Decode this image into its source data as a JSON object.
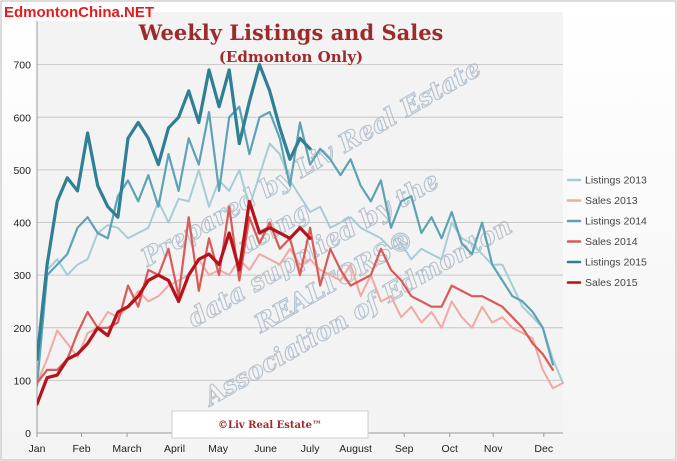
{
  "brand": "EdmontonChina.NET",
  "credit": "©Liv Real Estate™",
  "watermark": [
    "Prepared by Liv Real Estate",
    "using",
    "data supplied by the",
    "REALTORS®",
    "Association of Edmonton"
  ],
  "colors": {
    "listings_2013": "#a6cdd6",
    "sales_2013": "#f0a9a5",
    "listings_2014": "#5ea3b5",
    "sales_2014": "#d85b58",
    "listings_2015": "#2f7f95",
    "sales_2015": "#b5121b",
    "title": "#9e2a2b",
    "brand": "#e51c1c",
    "grid": "#c8c8c8",
    "plot_bg": "#f3f3f3"
  },
  "chart_data": {
    "type": "line",
    "title": "Weekly Listings and Sales",
    "subtitle": "(Edmonton Only)",
    "xlabel": "",
    "ylabel": "",
    "ylim": [
      0,
      800
    ],
    "yticks": [
      0,
      100,
      200,
      300,
      400,
      500,
      600,
      700
    ],
    "xlim": [
      1,
      53
    ],
    "x_ticks": [
      {
        "label": "Jan",
        "week": 1
      },
      {
        "label": "Feb",
        "week": 5.4
      },
      {
        "label": "March",
        "week": 9.9
      },
      {
        "label": "April",
        "week": 14.6
      },
      {
        "label": "May",
        "week": 18.9
      },
      {
        "label": "June",
        "week": 23.6
      },
      {
        "label": "July",
        "week": 28
      },
      {
        "label": "August",
        "week": 32.5
      },
      {
        "label": "Sep",
        "week": 37.3
      },
      {
        "label": "Oct",
        "week": 41.8
      },
      {
        "label": "Nov",
        "week": 46.1
      },
      {
        "label": "Dec",
        "week": 51.1
      }
    ],
    "grid": true,
    "legend_position": "right",
    "series": [
      {
        "name": "Listings 2013",
        "x": [
          1,
          2,
          3,
          4,
          5,
          6,
          7,
          8,
          9,
          10,
          11,
          12,
          13,
          14,
          15,
          16,
          17,
          18,
          19,
          20,
          21,
          22,
          23,
          24,
          25,
          26,
          27,
          28,
          29,
          30,
          31,
          32,
          33,
          34,
          35,
          36,
          37,
          38,
          39,
          40,
          41,
          42,
          43,
          44,
          45,
          46,
          47,
          48,
          49,
          50,
          51,
          52,
          53
        ],
        "values": [
          95,
          310,
          330,
          300,
          320,
          330,
          380,
          395,
          390,
          370,
          380,
          390,
          440,
          400,
          445,
          440,
          500,
          430,
          480,
          460,
          500,
          430,
          490,
          550,
          530,
          480,
          450,
          420,
          430,
          390,
          400,
          410,
          390,
          380,
          370,
          350,
          360,
          330,
          350,
          340,
          330,
          400,
          370,
          360,
          340,
          320,
          320,
          280,
          240,
          220,
          200,
          140,
          95
        ]
      },
      {
        "name": "Sales 2013",
        "x": [
          1,
          2,
          3,
          4,
          5,
          6,
          7,
          8,
          9,
          10,
          11,
          12,
          13,
          14,
          15,
          16,
          17,
          18,
          19,
          20,
          21,
          22,
          23,
          24,
          25,
          26,
          27,
          28,
          29,
          30,
          31,
          32,
          33,
          34,
          35,
          36,
          37,
          38,
          39,
          40,
          41,
          42,
          43,
          44,
          45,
          46,
          47,
          48,
          49,
          50,
          51,
          52,
          53
        ],
        "values": [
          95,
          140,
          195,
          170,
          145,
          190,
          200,
          230,
          220,
          240,
          270,
          250,
          260,
          280,
          290,
          300,
          330,
          300,
          310,
          300,
          330,
          310,
          340,
          330,
          320,
          350,
          320,
          330,
          310,
          300,
          290,
          320,
          260,
          300,
          250,
          260,
          220,
          240,
          210,
          230,
          200,
          250,
          220,
          200,
          240,
          210,
          220,
          200,
          190,
          180,
          120,
          85,
          95
        ]
      },
      {
        "name": "Listings 2014",
        "x": [
          1,
          2,
          3,
          4,
          5,
          6,
          7,
          8,
          9,
          10,
          11,
          12,
          13,
          14,
          15,
          16,
          17,
          18,
          19,
          20,
          21,
          22,
          23,
          24,
          25,
          26,
          27,
          28,
          29,
          30,
          31,
          32,
          33,
          34,
          35,
          36,
          37,
          38,
          39,
          40,
          41,
          42,
          43,
          44,
          45,
          46,
          47,
          48,
          49,
          50,
          51,
          52
        ],
        "values": [
          90,
          300,
          320,
          340,
          390,
          410,
          380,
          370,
          450,
          480,
          440,
          490,
          430,
          530,
          460,
          560,
          510,
          610,
          460,
          600,
          620,
          530,
          600,
          610,
          560,
          470,
          590,
          510,
          540,
          520,
          490,
          520,
          470,
          440,
          480,
          390,
          440,
          450,
          380,
          410,
          370,
          420,
          360,
          340,
          400,
          320,
          290,
          260,
          250,
          230,
          200,
          130
        ]
      },
      {
        "name": "Sales 2014",
        "x": [
          1,
          2,
          3,
          4,
          5,
          6,
          7,
          8,
          9,
          10,
          11,
          12,
          13,
          14,
          15,
          16,
          17,
          18,
          19,
          20,
          21,
          22,
          23,
          24,
          25,
          26,
          27,
          28,
          29,
          30,
          31,
          32,
          33,
          34,
          35,
          36,
          37,
          38,
          39,
          40,
          41,
          42,
          43,
          44,
          45,
          46,
          47,
          48,
          49,
          50,
          51,
          52
        ],
        "values": [
          95,
          120,
          120,
          140,
          190,
          230,
          200,
          200,
          210,
          280,
          240,
          310,
          300,
          350,
          260,
          410,
          270,
          370,
          300,
          430,
          290,
          410,
          360,
          400,
          350,
          370,
          300,
          390,
          280,
          350,
          310,
          280,
          290,
          300,
          350,
          310,
          290,
          260,
          250,
          240,
          240,
          280,
          270,
          260,
          260,
          250,
          240,
          220,
          200,
          170,
          150,
          120
        ]
      },
      {
        "name": "Listings 2015",
        "x": [
          1,
          2,
          3,
          4,
          5,
          6,
          7,
          8,
          9,
          10,
          11,
          12,
          13,
          14,
          15,
          16,
          17,
          18,
          19,
          20,
          21,
          22,
          23,
          24,
          25,
          26,
          27,
          28
        ],
        "values": [
          140,
          320,
          440,
          485,
          460,
          570,
          470,
          430,
          410,
          560,
          590,
          560,
          510,
          580,
          600,
          650,
          590,
          690,
          620,
          690,
          550,
          630,
          700,
          650,
          580,
          520,
          560,
          540
        ]
      },
      {
        "name": "Sales 2015",
        "x": [
          1,
          2,
          3,
          4,
          5,
          6,
          7,
          8,
          9,
          10,
          11,
          12,
          13,
          14,
          15,
          16,
          17,
          18,
          19,
          20,
          21,
          22,
          23,
          24,
          25,
          26,
          27,
          28
        ],
        "values": [
          55,
          105,
          110,
          140,
          150,
          170,
          200,
          185,
          230,
          240,
          260,
          290,
          300,
          290,
          250,
          300,
          330,
          340,
          320,
          380,
          310,
          440,
          380,
          390,
          380,
          370,
          390,
          370
        ]
      }
    ]
  }
}
